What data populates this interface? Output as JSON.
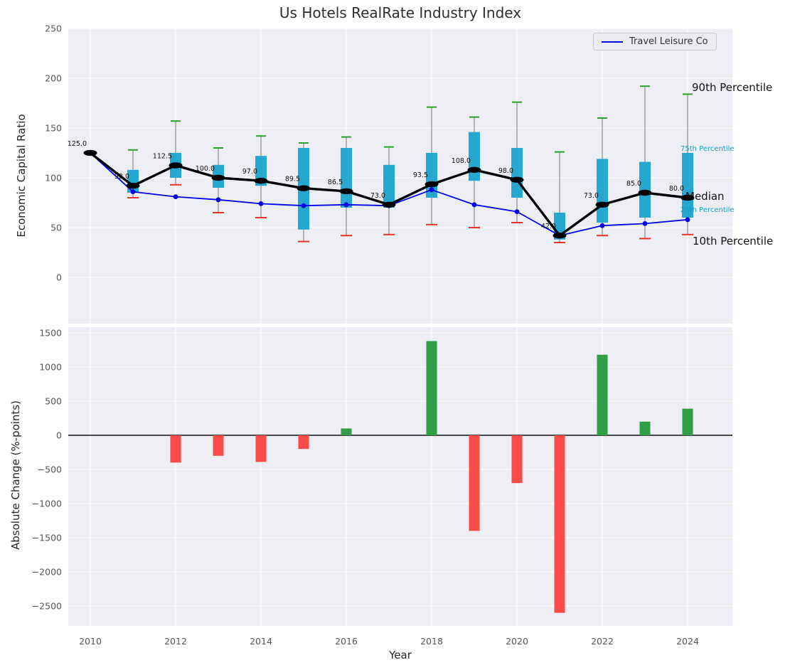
{
  "figure": {
    "title": "Us Hotels RealRate Industry Index",
    "legend_label": "Travel Leisure Co",
    "annotations": {
      "p90": "90th Percentile",
      "p75": "75th Percentile",
      "median": "Median",
      "p25": "25th Percentile",
      "p10": "10th Percentile"
    }
  },
  "colors": {
    "plot_background": "#edeef4",
    "grid": "#ffffff",
    "box": "#26a7cf",
    "median_line": "#000000",
    "company_line": "#0000e6",
    "p90_cap": "#2ca02c",
    "p10_cap": "#e8312e",
    "whisker": "#8a8a8a",
    "positive_bar": "#2f9e44",
    "negative_bar": "#fa4b46",
    "annotation_cyan": "#17a0c4"
  },
  "chart_data": [
    {
      "type": "boxplot+line",
      "title": "Us Hotels RealRate Industry Index",
      "ylabel": "Economic Capital Ratio",
      "yticks": [
        0,
        50,
        100,
        150,
        200,
        250
      ],
      "ylim": [
        -46,
        250
      ],
      "grid": true,
      "legend_position": "upper right",
      "years": [
        2010,
        2011,
        2012,
        2013,
        2014,
        2015,
        2016,
        2017,
        2018,
        2019,
        2020,
        2021,
        2022,
        2023,
        2024
      ],
      "series": [
        {
          "name": "Median",
          "color": "#000000",
          "values": [
            125.0,
            92.0,
            112.5,
            100.0,
            97.0,
            89.5,
            86.5,
            73.0,
            93.5,
            108.0,
            98.0,
            42.0,
            73.0,
            85.0,
            80.0
          ]
        },
        {
          "name": "Travel Leisure Co",
          "color": "#0000e6",
          "values": [
            125,
            86,
            81,
            78,
            74,
            72,
            73,
            72,
            88,
            73,
            66,
            42,
            52,
            54,
            58
          ]
        }
      ],
      "percentiles": {
        "p10": [
          null,
          80,
          93,
          65,
          60,
          36,
          42,
          43,
          53,
          50,
          55,
          35,
          42,
          39,
          43
        ],
        "p25": [
          null,
          85,
          100,
          90,
          92,
          48,
          70,
          70,
          80,
          97,
          80,
          38,
          55,
          60,
          60
        ],
        "p75": [
          null,
          108,
          125,
          113,
          122,
          130,
          130,
          113,
          125,
          146,
          130,
          65,
          119,
          116,
          125
        ],
        "p90": [
          null,
          128,
          157,
          130,
          142,
          135,
          141,
          131,
          171,
          161,
          176,
          126,
          160,
          192,
          184
        ]
      },
      "box_color": "#26a7cf"
    },
    {
      "type": "bar",
      "ylabel": "Absolute Change (%-points)",
      "xlabel": "Year",
      "yticks": [
        1500,
        1000,
        500,
        0,
        -500,
        -1000,
        -1500,
        -2000,
        -2500
      ],
      "xticks": [
        2010,
        2012,
        2014,
        2016,
        2018,
        2020,
        2022,
        2024
      ],
      "years": [
        2010,
        2011,
        2012,
        2013,
        2014,
        2015,
        2016,
        2017,
        2018,
        2019,
        2020,
        2021,
        2022,
        2023,
        2024
      ],
      "values": [
        null,
        null,
        -400,
        -300,
        -390,
        -200,
        100,
        null,
        1380,
        -1400,
        -700,
        -2600,
        1180,
        200,
        390
      ],
      "positive_color": "#2f9e44",
      "negative_color": "#fa4b46"
    }
  ]
}
